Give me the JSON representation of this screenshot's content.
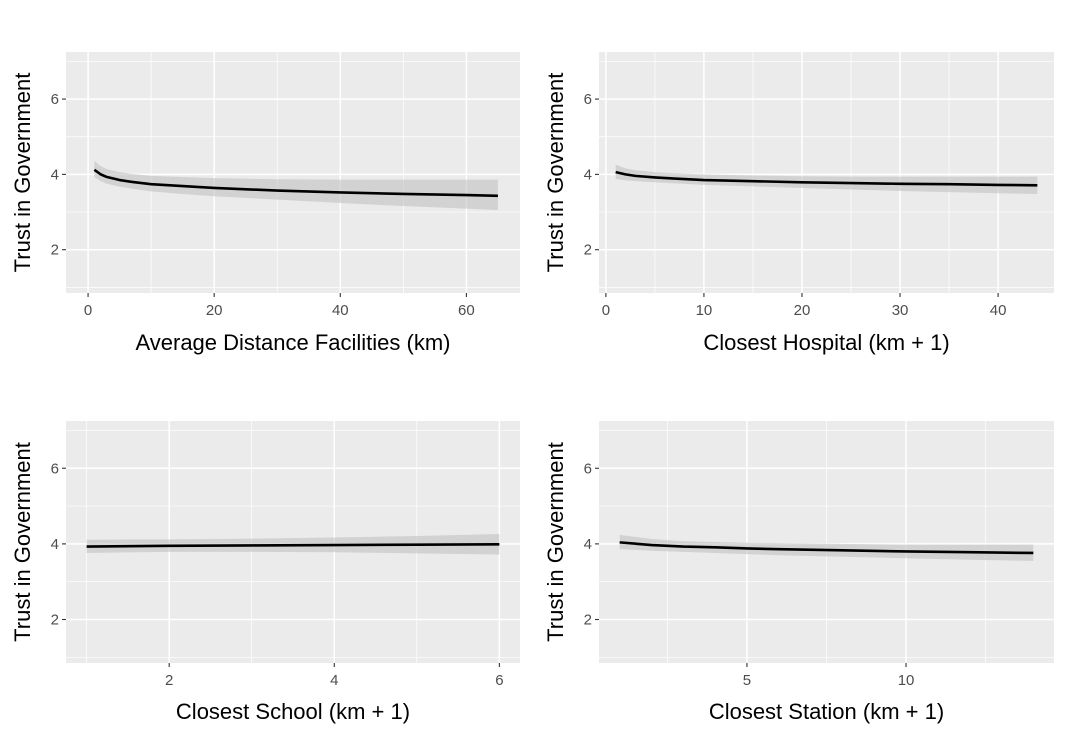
{
  "chart_data": [
    {
      "type": "line",
      "xlabel": "Average Distance Facilities (km)",
      "ylabel": "Trust in Government",
      "xlim": [
        -3.5,
        68.5
      ],
      "ylim": [
        0.85,
        7.25
      ],
      "xticks": [
        0,
        20,
        40,
        60
      ],
      "xticks_minor": [
        10,
        30,
        50
      ],
      "yticks": [
        2,
        4,
        6
      ],
      "yticks_minor": [
        1,
        3,
        5,
        7
      ],
      "grid": true,
      "series": [
        {
          "x": [
            1,
            2,
            3,
            5,
            7,
            10,
            15,
            20,
            30,
            40,
            50,
            60,
            65
          ],
          "y": [
            4.12,
            4.0,
            3.93,
            3.85,
            3.8,
            3.74,
            3.69,
            3.64,
            3.57,
            3.52,
            3.48,
            3.45,
            3.43
          ],
          "lower": [
            3.92,
            3.82,
            3.75,
            3.67,
            3.62,
            3.55,
            3.48,
            3.42,
            3.33,
            3.24,
            3.16,
            3.09,
            3.05
          ],
          "upper": [
            4.36,
            4.22,
            4.14,
            4.06,
            4.01,
            3.96,
            3.93,
            3.9,
            3.87,
            3.86,
            3.86,
            3.86,
            3.86
          ]
        }
      ]
    },
    {
      "type": "line",
      "xlabel": "Closest Hospital (km + 1)",
      "ylabel": "Trust in Government",
      "xlim": [
        -0.7,
        45.7
      ],
      "ylim": [
        0.85,
        7.25
      ],
      "xticks": [
        0,
        10,
        20,
        30,
        40
      ],
      "xticks_minor": [
        5,
        15,
        25,
        35
      ],
      "yticks": [
        2,
        4,
        6
      ],
      "yticks_minor": [
        1,
        3,
        5,
        7
      ],
      "grid": true,
      "series": [
        {
          "x": [
            1,
            2,
            3,
            5,
            7,
            10,
            15,
            20,
            25,
            30,
            35,
            40,
            44
          ],
          "y": [
            4.06,
            4.0,
            3.96,
            3.92,
            3.89,
            3.85,
            3.82,
            3.79,
            3.77,
            3.75,
            3.74,
            3.72,
            3.71
          ],
          "lower": [
            3.88,
            3.84,
            3.82,
            3.79,
            3.76,
            3.72,
            3.68,
            3.64,
            3.6,
            3.56,
            3.53,
            3.5,
            3.48
          ],
          "upper": [
            4.26,
            4.16,
            4.11,
            4.06,
            4.03,
            4.0,
            3.97,
            3.95,
            3.94,
            3.94,
            3.94,
            3.94,
            3.94
          ]
        }
      ]
    },
    {
      "type": "line",
      "xlabel": "Closest School (km + 1)",
      "ylabel": "Trust in Government",
      "xlim": [
        0.75,
        6.25
      ],
      "ylim": [
        0.85,
        7.25
      ],
      "xticks": [
        2,
        4,
        6
      ],
      "xticks_minor": [
        1,
        3,
        5
      ],
      "yticks": [
        2,
        4,
        6
      ],
      "yticks_minor": [
        1,
        3,
        5,
        7
      ],
      "grid": true,
      "series": [
        {
          "x": [
            1,
            2,
            3,
            4,
            5,
            6
          ],
          "y": [
            3.93,
            3.95,
            3.96,
            3.97,
            3.98,
            3.99
          ],
          "lower": [
            3.76,
            3.79,
            3.79,
            3.78,
            3.75,
            3.72
          ],
          "upper": [
            4.11,
            4.12,
            4.14,
            4.17,
            4.21,
            4.26
          ]
        }
      ]
    },
    {
      "type": "line",
      "xlabel": "Closest Station (km + 1)",
      "ylabel": "Trust in Government",
      "xlim": [
        0.35,
        14.65
      ],
      "ylim": [
        0.85,
        7.25
      ],
      "xticks": [
        5,
        10
      ],
      "xticks_minor": [
        2.5,
        7.5,
        12.5
      ],
      "yticks": [
        2,
        4,
        6
      ],
      "yticks_minor": [
        1,
        3,
        5,
        7
      ],
      "grid": true,
      "series": [
        {
          "x": [
            1,
            2,
            3,
            4,
            5,
            6,
            8,
            10,
            12,
            14
          ],
          "y": [
            4.04,
            3.97,
            3.93,
            3.91,
            3.88,
            3.86,
            3.83,
            3.8,
            3.78,
            3.76
          ],
          "lower": [
            3.86,
            3.82,
            3.79,
            3.76,
            3.73,
            3.7,
            3.66,
            3.62,
            3.58,
            3.55
          ],
          "upper": [
            4.24,
            4.13,
            4.07,
            4.05,
            4.03,
            4.02,
            4.0,
            3.98,
            3.98,
            3.98
          ]
        }
      ]
    }
  ]
}
